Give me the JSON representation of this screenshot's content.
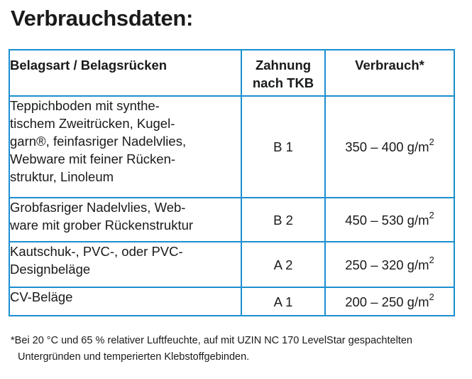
{
  "title": "Verbrauchsdaten:",
  "table": {
    "headers": {
      "type_label": "Belagsart / Belagsrücken",
      "notch_lines": [
        "Zahnung",
        "nach TKB"
      ],
      "usage_label": "Verbrauch*"
    },
    "rows": [
      {
        "type_lines": [
          "Teppichboden mit synthe-",
          "tischem Zweitrücken, Kugel-",
          "garn®, feinfasriger Nadelvlies,",
          "Webware mit feiner Rücken-",
          "struktur, Linoleum"
        ],
        "notch": "B 1",
        "usage": "350 – 400 g/m",
        "usage_exp": "2"
      },
      {
        "type_lines": [
          "Grobfasriger Nadelvlies, Web-",
          "ware mit grober Rückenstruktur"
        ],
        "notch": "B 2",
        "usage": "450 – 530 g/m",
        "usage_exp": "2"
      },
      {
        "type_lines": [
          "Kautschuk-, PVC-, oder PVC-",
          "Designbeläge"
        ],
        "notch": "A 2",
        "usage": "250 – 320 g/m",
        "usage_exp": "2"
      },
      {
        "type_lines": [
          "CV-Beläge"
        ],
        "notch": "A 1",
        "usage": "200 – 250 g/m",
        "usage_exp": "2"
      }
    ]
  },
  "footnote": {
    "line1": "*Bei 20 °C und 65 % relativer Luftfeuchte, auf mit UZIN NC 170 LevelStar gespachtelten",
    "line2": "Untergründen und temperierten Klebstoffgebinden."
  },
  "colors": {
    "table_border": "#1b8fd0",
    "text": "#1a1a1a"
  }
}
